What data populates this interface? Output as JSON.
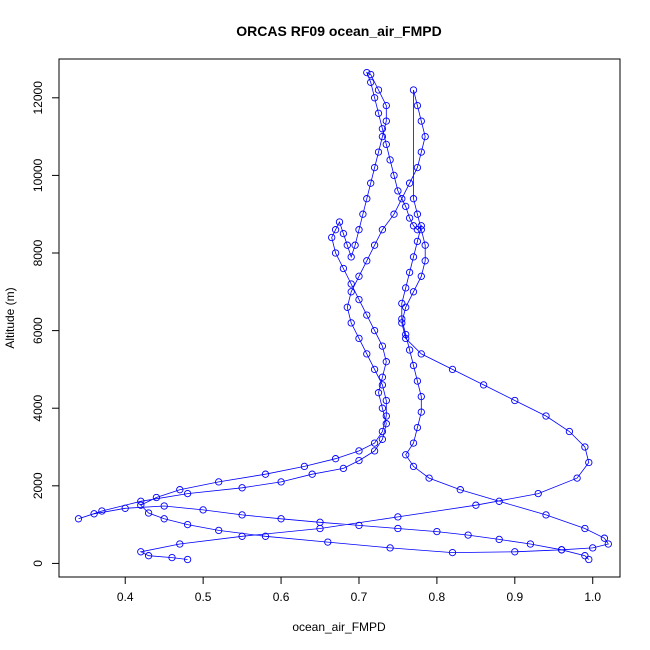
{
  "chart_data": {
    "type": "scatter",
    "title": "ORCAS RF09 ocean_air_FMPD",
    "xlabel": "ocean_air_FMPD",
    "ylabel": "Altitude (m)",
    "xlim": [
      0.315,
      1.035
    ],
    "ylim": [
      -350,
      13000
    ],
    "x_ticks": [
      "0.4",
      "0.5",
      "0.6",
      "0.7",
      "0.8",
      "0.9",
      "1.0"
    ],
    "y_ticks": [
      "0",
      "2000",
      "4000",
      "6000",
      "8000",
      "10000",
      "12000"
    ],
    "grid": false,
    "legend": "none",
    "marker": "open-circle",
    "connecting_line": true,
    "series": [
      {
        "color": "#0000ff",
        "x": [
          0.995,
          0.99,
          0.96,
          0.92,
          0.88,
          0.84,
          0.8,
          0.75,
          0.7,
          0.65,
          0.6,
          0.55,
          0.5,
          0.45,
          0.4,
          0.36,
          0.34,
          0.37,
          0.42,
          0.48,
          0.55,
          0.6,
          0.64,
          0.68,
          0.7,
          0.72,
          0.73,
          0.735,
          0.73,
          0.725,
          0.73,
          0.735,
          0.73,
          0.72,
          0.71,
          0.7,
          0.69,
          0.68,
          0.67,
          0.665,
          0.67,
          0.675,
          0.68,
          0.685,
          0.69,
          0.695,
          0.7,
          0.705,
          0.71,
          0.715,
          0.72,
          0.725,
          0.73,
          0.735,
          0.735,
          0.725,
          0.715,
          0.71,
          0.715,
          0.72,
          0.725,
          0.73,
          0.735,
          0.74,
          0.745,
          0.75,
          0.76,
          0.765,
          0.77,
          0.775,
          0.78,
          0.775,
          0.77,
          0.765,
          0.76,
          0.755,
          0.755,
          0.76,
          0.765,
          0.77,
          0.775,
          0.78,
          0.78,
          0.775,
          0.77,
          0.76,
          0.77,
          0.79,
          0.83,
          0.88,
          0.94,
          0.99,
          1.015,
          1.02,
          1.0,
          0.96,
          0.9,
          0.82,
          0.74,
          0.66,
          0.58,
          0.52,
          0.48,
          0.45,
          0.43,
          0.42,
          0.44,
          0.47,
          0.52,
          0.58,
          0.63,
          0.67,
          0.7,
          0.72,
          0.73,
          0.735,
          0.735,
          0.73,
          0.72,
          0.71,
          0.7,
          0.69,
          0.685,
          0.69,
          0.7,
          0.71,
          0.72,
          0.73,
          0.745,
          0.755,
          0.765,
          0.775,
          0.78,
          0.785,
          0.78,
          0.775,
          0.77,
          0.77,
          0.775,
          0.78,
          0.785,
          0.785,
          0.78,
          0.77,
          0.76,
          0.755,
          0.76,
          0.78,
          0.82,
          0.86,
          0.9,
          0.94,
          0.97,
          0.99,
          0.995,
          0.98,
          0.93,
          0.85,
          0.75,
          0.65,
          0.55,
          0.47,
          0.42,
          0.43,
          0.46,
          0.48
        ],
        "y": [
          100,
          200,
          350,
          500,
          620,
          730,
          820,
          900,
          980,
          1060,
          1150,
          1250,
          1380,
          1480,
          1420,
          1280,
          1150,
          1350,
          1600,
          1800,
          1950,
          2100,
          2300,
          2450,
          2650,
          2900,
          3200,
          3600,
          4000,
          4400,
          4800,
          5200,
          5600,
          6000,
          6400,
          6800,
          7200,
          7600,
          8000,
          8400,
          8600,
          8800,
          8500,
          8200,
          7900,
          8200,
          8600,
          9000,
          9400,
          9800,
          10200,
          10600,
          11000,
          11400,
          11800,
          12200,
          12600,
          12650,
          12400,
          12000,
          11600,
          11200,
          10800,
          10400,
          10000,
          9600,
          9200,
          8900,
          8700,
          8600,
          8700,
          8300,
          7900,
          7500,
          7100,
          6700,
          6300,
          5900,
          5500,
          5100,
          4700,
          4300,
          3900,
          3500,
          3100,
          2800,
          2500,
          2200,
          1900,
          1600,
          1250,
          900,
          650,
          500,
          400,
          350,
          300,
          280,
          400,
          550,
          700,
          850,
          1000,
          1150,
          1300,
          1500,
          1700,
          1900,
          2100,
          2300,
          2500,
          2700,
          2900,
          3100,
          3400,
          3800,
          4200,
          4600,
          5000,
          5400,
          5800,
          6200,
          6600,
          7000,
          7400,
          7800,
          8200,
          8600,
          9000,
          9400,
          9800,
          10200,
          10600,
          11000,
          11400,
          11800,
          12200,
          9400,
          9000,
          8600,
          8200,
          7800,
          7400,
          7000,
          6600,
          6200,
          5800,
          5400,
          5000,
          4600,
          4200,
          3800,
          3400,
          3000,
          2600,
          2200,
          1800,
          1500,
          1200,
          900,
          700,
          500,
          300,
          200,
          150,
          100
        ]
      }
    ]
  }
}
